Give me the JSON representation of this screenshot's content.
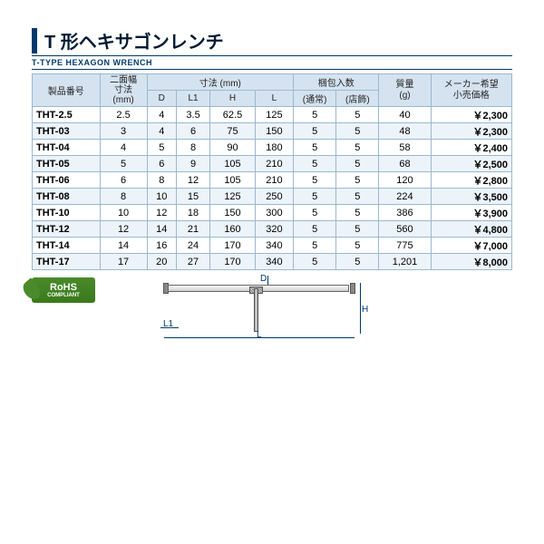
{
  "title": {
    "jp": "T 形ヘキサゴンレンチ",
    "en": "T-TYPE HEXAGON WRENCH"
  },
  "headers": {
    "pn": "製品番号",
    "wf": "二面幅\n寸法\n(mm)",
    "dim": "寸法 (mm)",
    "D": "D",
    "L1": "L1",
    "H": "H",
    "L": "L",
    "pack": "梱包入数",
    "norm": "(通常)",
    "shop": "(店飾)",
    "mass": "質量\n(g)",
    "price": "メーカー希望\n小売価格"
  },
  "rows": [
    {
      "pn": "THT-2.5",
      "wf": "2.5",
      "D": "4",
      "L1": "3.5",
      "H": "62.5",
      "L": "125",
      "n": "5",
      "s": "5",
      "m": "40",
      "p": "￥2,300"
    },
    {
      "pn": "THT-03",
      "wf": "3",
      "D": "4",
      "L1": "6",
      "H": "75",
      "L": "150",
      "n": "5",
      "s": "5",
      "m": "48",
      "p": "￥2,300"
    },
    {
      "pn": "THT-04",
      "wf": "4",
      "D": "5",
      "L1": "8",
      "H": "90",
      "L": "180",
      "n": "5",
      "s": "5",
      "m": "58",
      "p": "￥2,400"
    },
    {
      "pn": "THT-05",
      "wf": "5",
      "D": "6",
      "L1": "9",
      "H": "105",
      "L": "210",
      "n": "5",
      "s": "5",
      "m": "68",
      "p": "￥2,500"
    },
    {
      "pn": "THT-06",
      "wf": "6",
      "D": "8",
      "L1": "12",
      "H": "105",
      "L": "210",
      "n": "5",
      "s": "5",
      "m": "120",
      "p": "￥2,800"
    },
    {
      "pn": "THT-08",
      "wf": "8",
      "D": "10",
      "L1": "15",
      "H": "125",
      "L": "250",
      "n": "5",
      "s": "5",
      "m": "224",
      "p": "￥3,500"
    },
    {
      "pn": "THT-10",
      "wf": "10",
      "D": "12",
      "L1": "18",
      "H": "150",
      "L": "300",
      "n": "5",
      "s": "5",
      "m": "386",
      "p": "￥3,900"
    },
    {
      "pn": "THT-12",
      "wf": "12",
      "D": "14",
      "L1": "21",
      "H": "160",
      "L": "320",
      "n": "5",
      "s": "5",
      "m": "560",
      "p": "￥4,800"
    },
    {
      "pn": "THT-14",
      "wf": "14",
      "D": "16",
      "L1": "24",
      "H": "170",
      "L": "340",
      "n": "5",
      "s": "5",
      "m": "775",
      "p": "￥7,000"
    },
    {
      "pn": "THT-17",
      "wf": "17",
      "D": "20",
      "L1": "27",
      "H": "170",
      "L": "340",
      "n": "5",
      "s": "5",
      "m": "1,201",
      "p": "￥8,000"
    }
  ],
  "rohs": {
    "line1": "RoHS",
    "line2": "COMPLIANT"
  },
  "diag": {
    "D": "D",
    "L1": "L1",
    "L": "L",
    "H": "H"
  },
  "colors": {
    "header_bg": "#d5e3f0",
    "odd_bg": "#ecf3f9",
    "border": "#9bb8d0",
    "accent": "#003a6b"
  }
}
